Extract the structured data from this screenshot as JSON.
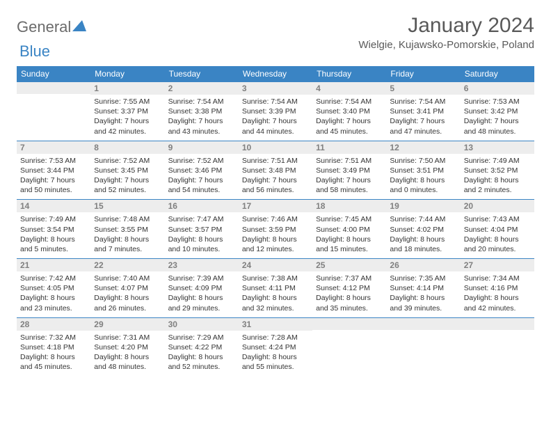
{
  "brand": {
    "part1": "General",
    "part2": "Blue"
  },
  "title": "January 2024",
  "location": "Wielgie, Kujawsko-Pomorskie, Poland",
  "colors": {
    "header_bg": "#3a84c4",
    "header_text": "#ffffff",
    "daynum_bg": "#ededed",
    "daynum_border": "#3a84c4",
    "daynum_text": "#808080",
    "body_text": "#333333",
    "title_text": "#595959"
  },
  "typography": {
    "title_fontsize": 30,
    "location_fontsize": 15,
    "weekday_fontsize": 12,
    "daynum_fontsize": 12,
    "info_fontsize": 10.5
  },
  "layout": {
    "columns": 7,
    "rows": 5,
    "start_offset": 1
  },
  "weekdays": [
    "Sunday",
    "Monday",
    "Tuesday",
    "Wednesday",
    "Thursday",
    "Friday",
    "Saturday"
  ],
  "days": [
    {
      "n": 1,
      "sunrise": "7:55 AM",
      "sunset": "3:37 PM",
      "daylight": "7 hours and 42 minutes."
    },
    {
      "n": 2,
      "sunrise": "7:54 AM",
      "sunset": "3:38 PM",
      "daylight": "7 hours and 43 minutes."
    },
    {
      "n": 3,
      "sunrise": "7:54 AM",
      "sunset": "3:39 PM",
      "daylight": "7 hours and 44 minutes."
    },
    {
      "n": 4,
      "sunrise": "7:54 AM",
      "sunset": "3:40 PM",
      "daylight": "7 hours and 45 minutes."
    },
    {
      "n": 5,
      "sunrise": "7:54 AM",
      "sunset": "3:41 PM",
      "daylight": "7 hours and 47 minutes."
    },
    {
      "n": 6,
      "sunrise": "7:53 AM",
      "sunset": "3:42 PM",
      "daylight": "7 hours and 48 minutes."
    },
    {
      "n": 7,
      "sunrise": "7:53 AM",
      "sunset": "3:44 PM",
      "daylight": "7 hours and 50 minutes."
    },
    {
      "n": 8,
      "sunrise": "7:52 AM",
      "sunset": "3:45 PM",
      "daylight": "7 hours and 52 minutes."
    },
    {
      "n": 9,
      "sunrise": "7:52 AM",
      "sunset": "3:46 PM",
      "daylight": "7 hours and 54 minutes."
    },
    {
      "n": 10,
      "sunrise": "7:51 AM",
      "sunset": "3:48 PM",
      "daylight": "7 hours and 56 minutes."
    },
    {
      "n": 11,
      "sunrise": "7:51 AM",
      "sunset": "3:49 PM",
      "daylight": "7 hours and 58 minutes."
    },
    {
      "n": 12,
      "sunrise": "7:50 AM",
      "sunset": "3:51 PM",
      "daylight": "8 hours and 0 minutes."
    },
    {
      "n": 13,
      "sunrise": "7:49 AM",
      "sunset": "3:52 PM",
      "daylight": "8 hours and 2 minutes."
    },
    {
      "n": 14,
      "sunrise": "7:49 AM",
      "sunset": "3:54 PM",
      "daylight": "8 hours and 5 minutes."
    },
    {
      "n": 15,
      "sunrise": "7:48 AM",
      "sunset": "3:55 PM",
      "daylight": "8 hours and 7 minutes."
    },
    {
      "n": 16,
      "sunrise": "7:47 AM",
      "sunset": "3:57 PM",
      "daylight": "8 hours and 10 minutes."
    },
    {
      "n": 17,
      "sunrise": "7:46 AM",
      "sunset": "3:59 PM",
      "daylight": "8 hours and 12 minutes."
    },
    {
      "n": 18,
      "sunrise": "7:45 AM",
      "sunset": "4:00 PM",
      "daylight": "8 hours and 15 minutes."
    },
    {
      "n": 19,
      "sunrise": "7:44 AM",
      "sunset": "4:02 PM",
      "daylight": "8 hours and 18 minutes."
    },
    {
      "n": 20,
      "sunrise": "7:43 AM",
      "sunset": "4:04 PM",
      "daylight": "8 hours and 20 minutes."
    },
    {
      "n": 21,
      "sunrise": "7:42 AM",
      "sunset": "4:05 PM",
      "daylight": "8 hours and 23 minutes."
    },
    {
      "n": 22,
      "sunrise": "7:40 AM",
      "sunset": "4:07 PM",
      "daylight": "8 hours and 26 minutes."
    },
    {
      "n": 23,
      "sunrise": "7:39 AM",
      "sunset": "4:09 PM",
      "daylight": "8 hours and 29 minutes."
    },
    {
      "n": 24,
      "sunrise": "7:38 AM",
      "sunset": "4:11 PM",
      "daylight": "8 hours and 32 minutes."
    },
    {
      "n": 25,
      "sunrise": "7:37 AM",
      "sunset": "4:12 PM",
      "daylight": "8 hours and 35 minutes."
    },
    {
      "n": 26,
      "sunrise": "7:35 AM",
      "sunset": "4:14 PM",
      "daylight": "8 hours and 39 minutes."
    },
    {
      "n": 27,
      "sunrise": "7:34 AM",
      "sunset": "4:16 PM",
      "daylight": "8 hours and 42 minutes."
    },
    {
      "n": 28,
      "sunrise": "7:32 AM",
      "sunset": "4:18 PM",
      "daylight": "8 hours and 45 minutes."
    },
    {
      "n": 29,
      "sunrise": "7:31 AM",
      "sunset": "4:20 PM",
      "daylight": "8 hours and 48 minutes."
    },
    {
      "n": 30,
      "sunrise": "7:29 AM",
      "sunset": "4:22 PM",
      "daylight": "8 hours and 52 minutes."
    },
    {
      "n": 31,
      "sunrise": "7:28 AM",
      "sunset": "4:24 PM",
      "daylight": "8 hours and 55 minutes."
    }
  ]
}
